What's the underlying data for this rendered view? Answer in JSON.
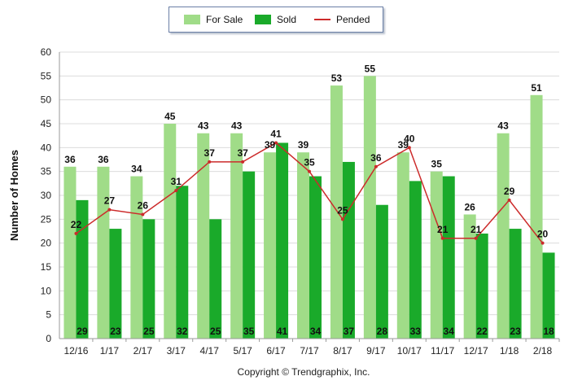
{
  "chart_data": {
    "type": "bar",
    "categories": [
      "12/16",
      "1/17",
      "2/17",
      "3/17",
      "4/17",
      "5/17",
      "6/17",
      "7/17",
      "8/17",
      "9/17",
      "10/17",
      "11/17",
      "12/17",
      "1/18",
      "2/18"
    ],
    "series": [
      {
        "name": "For Sale",
        "type": "bar",
        "color": "#a0dc88",
        "values": [
          36,
          36,
          34,
          45,
          43,
          43,
          39,
          39,
          53,
          55,
          39,
          35,
          26,
          43,
          51
        ]
      },
      {
        "name": "Sold",
        "type": "bar",
        "color": "#1aaa2a",
        "values": [
          29,
          23,
          25,
          32,
          25,
          35,
          41,
          34,
          37,
          28,
          33,
          34,
          22,
          23,
          18
        ]
      },
      {
        "name": "Pended",
        "type": "line",
        "color": "#cc2b2b",
        "values": [
          22,
          27,
          26,
          31,
          37,
          37,
          41,
          35,
          25,
          36,
          40,
          21,
          21,
          29,
          20
        ]
      }
    ],
    "ylabel": "Number of Homes",
    "ylim": [
      0,
      60
    ],
    "yticks": [
      0,
      5,
      10,
      15,
      20,
      25,
      30,
      35,
      40,
      45,
      50,
      55,
      60
    ],
    "grid": true,
    "legend_position": "top-center",
    "footer": "Copyright © Trendgraphix, Inc."
  }
}
